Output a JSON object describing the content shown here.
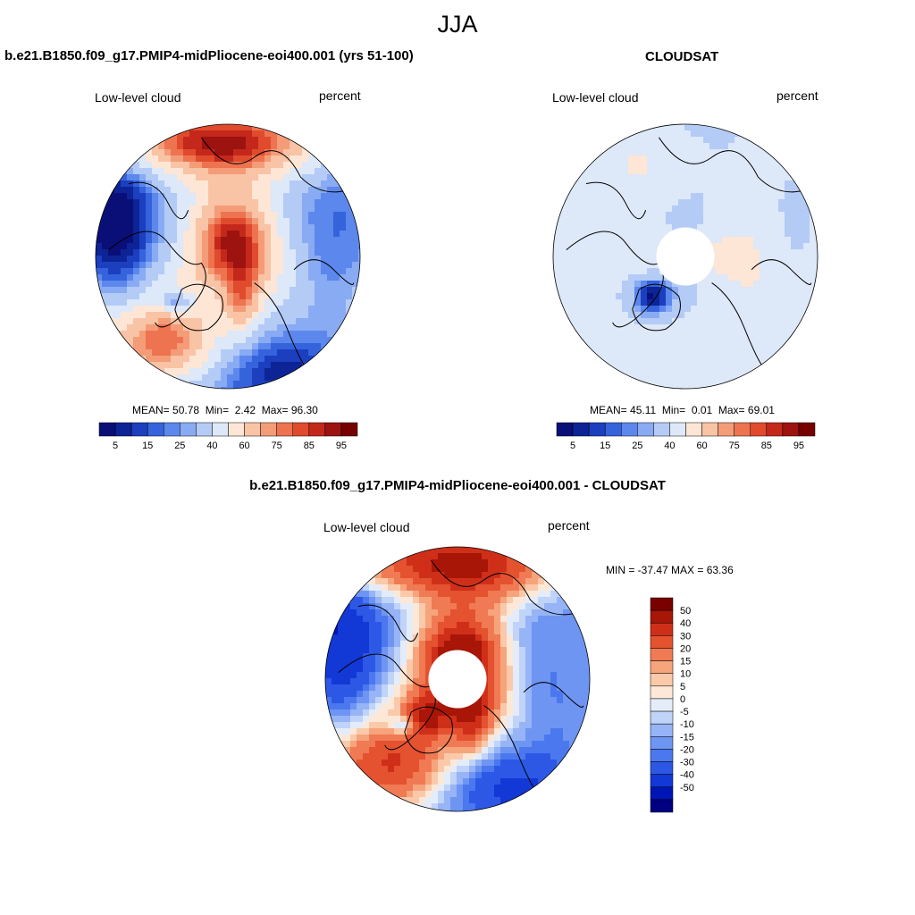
{
  "figure": {
    "title": "JJA",
    "top_left_title": "b.e21.B1850.f09_g17.PMIP4-midPliocene-eoi400.001 (yrs 51-100)",
    "top_right_title": "CLOUDSAT",
    "bottom_title": "b.e21.B1850.f09_g17.PMIP4-midPliocene-eoi400.001 - CLOUDSAT"
  },
  "palettes": {
    "absolute": [
      "#0a0f78",
      "#0d2496",
      "#1b3fbf",
      "#3563dc",
      "#5c87ec",
      "#88abf3",
      "#b4cbf6",
      "#dde8f8",
      "#fde6d6",
      "#f9c3a5",
      "#f49c78",
      "#ee7350",
      "#e04b2d",
      "#c4281b",
      "#9c1310",
      "#760000"
    ],
    "difference": [
      "#000080",
      "#0015b5",
      "#1238d6",
      "#2c58e5",
      "#4b78ee",
      "#6f95f3",
      "#96b4f6",
      "#c0d3f8",
      "#e4ecf9",
      "#fde8d8",
      "#fac9a9",
      "#f6a47c",
      "#f07a53",
      "#e45230",
      "#cf2f18",
      "#a81608",
      "#7a0000"
    ]
  },
  "chart_data": [
    {
      "type": "polar-contour-map",
      "id": "model",
      "title": "b.e21.B1850.f09_g17.PMIP4-midPliocene-eoi400.001 (yrs 51-100)",
      "left_label": "Low-level cloud",
      "units": "percent",
      "stats": {
        "mean_label": "MEAN=",
        "mean": "50.78",
        "min_label": "Min=",
        "min": "2.42",
        "max_label": "Max=",
        "max": "96.30"
      },
      "colorbar_ticks": [
        "5",
        "15",
        "25",
        "40",
        "60",
        "75",
        "85",
        "95"
      ],
      "levels": [
        5,
        10,
        15,
        20,
        25,
        30,
        40,
        50,
        60,
        70,
        75,
        80,
        85,
        90,
        95
      ],
      "pole_masked": false
    },
    {
      "type": "polar-contour-map",
      "id": "obs",
      "title": "CLOUDSAT",
      "left_label": "Low-level cloud",
      "units": "percent",
      "stats": {
        "mean_label": "MEAN=",
        "mean": "45.11",
        "min_label": "Min=",
        "min": "0.01",
        "max_label": "Max=",
        "max": "69.01"
      },
      "colorbar_ticks": [
        "5",
        "15",
        "25",
        "40",
        "60",
        "75",
        "85",
        "95"
      ],
      "levels": [
        5,
        10,
        15,
        20,
        25,
        30,
        40,
        50,
        60,
        70,
        75,
        80,
        85,
        90,
        95
      ],
      "pole_masked": true
    },
    {
      "type": "polar-contour-map",
      "id": "diff",
      "title": "b.e21.B1850.f09_g17.PMIP4-midPliocene-eoi400.001 - CLOUDSAT",
      "left_label": "Low-level cloud",
      "units": "percent",
      "minmax_label": "MIN = -37.47 MAX =  63.36",
      "stats": {
        "min": -37.47,
        "max": 63.36
      },
      "colorbar_ticks": [
        "50",
        "40",
        "30",
        "20",
        "15",
        "10",
        "5",
        "0",
        "-5",
        "-10",
        "-15",
        "-20",
        "-30",
        "-40",
        "-50"
      ],
      "levels": [
        -50,
        -40,
        -30,
        -20,
        -15,
        -10,
        -5,
        0,
        5,
        10,
        15,
        20,
        30,
        40,
        50
      ],
      "pole_masked": true
    }
  ]
}
